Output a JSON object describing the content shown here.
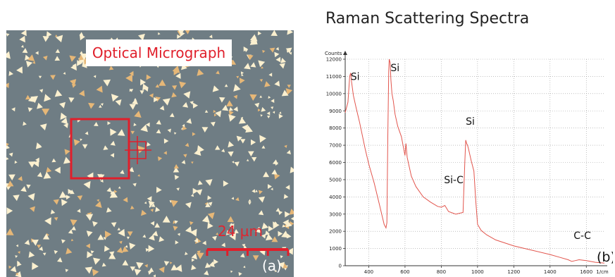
{
  "micrograph": {
    "title": "Optical Micrograph",
    "scale_bar": "24 µm",
    "panel_label": "(a)",
    "box_color": "#e01f2b"
  },
  "chart_data": {
    "type": "line",
    "title": "Raman Scattering Spectra",
    "xlabel": "1/cm",
    "ylabel": "Counts",
    "xlim": [
      270,
      1700
    ],
    "ylim": [
      0,
      12000
    ],
    "x_ticks": [
      400,
      600,
      800,
      1000,
      1200,
      1400,
      1600
    ],
    "y_ticks": [
      0,
      1000,
      2000,
      3000,
      4000,
      5000,
      6000,
      7000,
      8000,
      9000,
      10000,
      11000,
      12000
    ],
    "grid": true,
    "line_color": "#e2554d",
    "panel_label": "(b)",
    "annotations": [
      {
        "text": "Si",
        "x": 300,
        "y": 10800
      },
      {
        "text": "Si",
        "x": 520,
        "y": 11300
      },
      {
        "text": "Si",
        "x": 935,
        "y": 8200
      },
      {
        "text": "Si-C",
        "x": 815,
        "y": 4800
      },
      {
        "text": "C-C",
        "x": 1530,
        "y": 1550
      }
    ],
    "series": [
      {
        "x": [
          270,
          285,
          295,
          300,
          305,
          315,
          330,
          350,
          380,
          400,
          430,
          460,
          485,
          495,
          500,
          505,
          510,
          513,
          518,
          522,
          528,
          535,
          545,
          560,
          580,
          600,
          605,
          612,
          620,
          635,
          660,
          700,
          740,
          780,
          800,
          820,
          840,
          880,
          920,
          930,
          935,
          940,
          945,
          950,
          965,
          980,
          990,
          1000,
          1020,
          1050,
          1100,
          1200,
          1300,
          1400,
          1450,
          1500,
          1520,
          1540,
          1560,
          1600,
          1650,
          1700
        ],
        "y": [
          8900,
          9500,
          11000,
          11200,
          10700,
          9900,
          9200,
          8300,
          6800,
          5900,
          4800,
          3500,
          2400,
          2200,
          2500,
          7500,
          11300,
          12000,
          11800,
          10800,
          10000,
          9600,
          8800,
          8100,
          7500,
          6400,
          7100,
          6300,
          5900,
          5200,
          4600,
          4000,
          3700,
          3450,
          3400,
          3500,
          3150,
          3000,
          3100,
          6000,
          7300,
          7100,
          7000,
          6800,
          6100,
          5500,
          3800,
          2400,
          2050,
          1800,
          1500,
          1150,
          900,
          650,
          500,
          350,
          250,
          300,
          350,
          300,
          200,
          150
        ]
      }
    ]
  }
}
